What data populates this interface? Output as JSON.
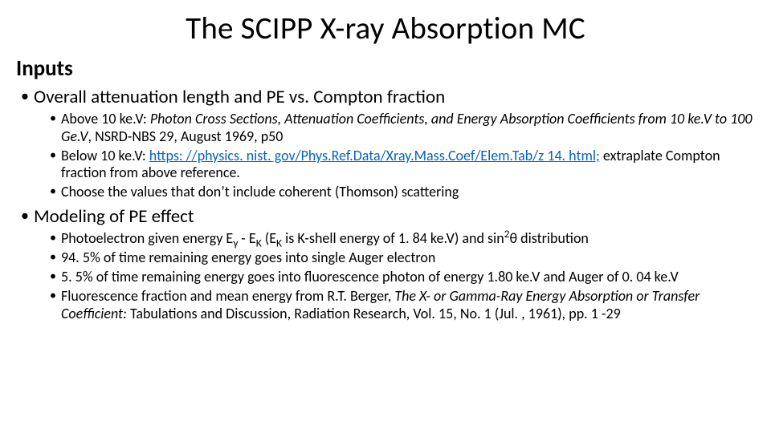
{
  "colors": {
    "background": "#ffffff",
    "text": "#000000",
    "link": "#0563c1"
  },
  "typography": {
    "title_fontsize": 39,
    "heading_fontsize": 27,
    "level1_fontsize": 23,
    "level2_fontsize": 18,
    "font_family": "Calibri"
  },
  "title": "The SCIPP X-ray Absorption MC",
  "heading": "Inputs",
  "section1": {
    "heading": "Overall attenuation length and PE vs. Compton fraction",
    "items": [
      {
        "prefix": "Above 10 ke.V: ",
        "italic": "Photon Cross Sections, Attenuation Coefficients, and Energy Absorption Coefficients from 10 ke.V to 100 Ge.V",
        "suffix": ", NSRD-NBS 29, August 1969, p50"
      },
      {
        "prefix": "Below 10 ke.V:  ",
        "link": "https: //physics. nist. gov/Phys.Ref.Data/Xray.Mass.Coef/Elem.Tab/z 14. html;",
        "suffix": " extraplate Compton fraction from above reference."
      },
      {
        "text": "Choose the values that don’t include coherent (Thomson) scattering"
      }
    ]
  },
  "section2": {
    "heading": "Modeling of PE effect",
    "items": [
      {
        "pe_pre": "Photoelectron given energy E",
        "pe_gamma": "γ",
        "pe_dash": " - E",
        "pe_k": "K",
        "pe_paren_open": " (E",
        "pe_k2": "K",
        "pe_paren_rest": " is K-shell energy of 1. 84 ke.V) and sin",
        "pe_sup": "2",
        "pe_theta": "θ distribution"
      },
      {
        "text": "94. 5% of time remaining energy goes into single Auger electron"
      },
      {
        "text": "5. 5% of time remaining energy goes into fluorescence photon of energy 1.80 ke.V and Auger of 0. 04 ke.V"
      },
      {
        "prefix": "Fluorescence fraction and mean energy from R.T. Berger, ",
        "italic": "The X- or Gamma-Ray Energy Absorption or Transfer Coefficient:",
        "suffix": " Tabulations and Discussion, Radiation Research, Vol. 15, No. 1 (Jul. , 1961), pp. 1 -29"
      }
    ]
  }
}
